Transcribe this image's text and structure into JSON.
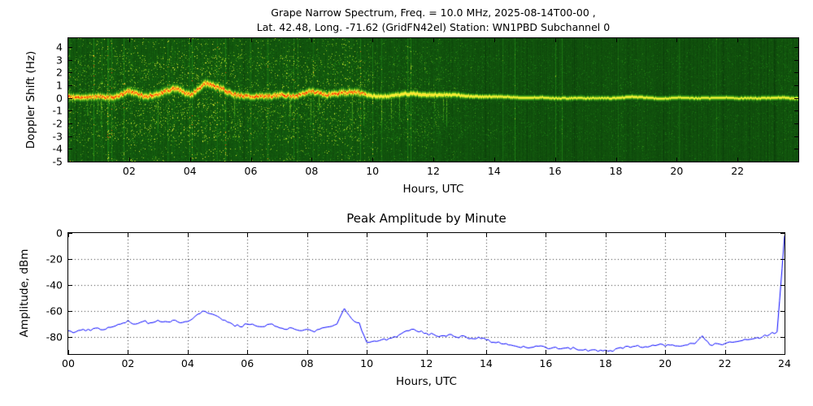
{
  "chart_data": [
    {
      "type": "heatmap",
      "name": "grape-narrow-spectrum",
      "title_line1": "Grape Narrow Spectrum, Freq. = 10.0 MHz, 2025-08-14T00-00 ,",
      "title_line2": "Lat. 42.48, Long. -71.62 (GridFN42el) Station: WN1PBD Subchannel 0",
      "xlabel": "Hours, UTC",
      "ylabel": "Doppler Shift (Hz)",
      "xlim": [
        0,
        24
      ],
      "ylim": [
        -5,
        4.7
      ],
      "xticks": [
        2,
        4,
        6,
        8,
        10,
        12,
        14,
        16,
        18,
        20,
        22
      ],
      "xtick_labels": [
        "02",
        "04",
        "06",
        "08",
        "10",
        "12",
        "14",
        "16",
        "18",
        "20",
        "22"
      ],
      "yticks": [
        4,
        3,
        2,
        1,
        0,
        -1,
        -2,
        -3,
        -4,
        -5
      ],
      "ytick_labels": [
        "4",
        "3",
        "2",
        "1",
        "0",
        "-1",
        "-2",
        "-3",
        "-4",
        "-5"
      ],
      "colormap_stops": [
        "#083208",
        "#1e8214",
        "#96c81e",
        "#ffff3c",
        "#ffa014",
        "#ff1400"
      ],
      "carrier": {
        "hours": [
          0,
          0.5,
          1,
          1.5,
          2,
          2.5,
          3,
          3.5,
          4,
          4.5,
          5,
          5.5,
          6,
          6.5,
          7,
          7.5,
          8,
          8.5,
          9,
          9.5,
          10,
          10.5,
          11,
          11.5,
          12,
          12.5,
          13,
          13.5,
          14,
          14.5,
          15,
          15.5,
          16,
          16.5,
          17,
          17.5,
          18,
          18.5,
          19,
          19.5,
          20,
          20.5,
          21,
          21.5,
          22,
          22.5,
          23,
          23.5,
          24
        ],
        "doppler_hz": [
          0.1,
          0.0,
          0.2,
          0.1,
          0.5,
          0.2,
          0.4,
          0.7,
          0.3,
          1.2,
          0.7,
          0.3,
          0.2,
          0.1,
          0.3,
          0.2,
          0.5,
          0.3,
          0.5,
          0.4,
          0.2,
          0.2,
          0.3,
          0.35,
          0.3,
          0.25,
          0.2,
          0.15,
          0.1,
          0.1,
          0.05,
          0.05,
          0.0,
          0.05,
          0.0,
          0.0,
          0.05,
          0.1,
          0.05,
          0.0,
          0.05,
          0.0,
          0.05,
          0.05,
          0.0,
          0.05,
          0.0,
          0.05,
          0.0
        ],
        "activity": [
          0.85,
          0.8,
          0.85,
          0.9,
          0.95,
          0.9,
          0.9,
          0.95,
          0.9,
          1.0,
          0.95,
          0.85,
          0.8,
          0.85,
          0.85,
          0.8,
          0.85,
          0.85,
          0.9,
          0.85,
          0.6,
          0.55,
          0.6,
          0.65,
          0.6,
          0.5,
          0.45,
          0.4,
          0.35,
          0.3,
          0.3,
          0.28,
          0.25,
          0.25,
          0.25,
          0.22,
          0.3,
          0.35,
          0.3,
          0.25,
          0.25,
          0.22,
          0.25,
          0.25,
          0.22,
          0.25,
          0.28,
          0.3,
          0.3
        ]
      }
    },
    {
      "type": "line",
      "name": "peak-amplitude-by-minute",
      "title": "Peak Amplitude by Minute",
      "xlabel": "Hours, UTC",
      "ylabel": "Amplitude, dBm",
      "xlim": [
        0,
        24
      ],
      "ylim": [
        -93,
        0
      ],
      "xticks": [
        0,
        2,
        4,
        6,
        8,
        10,
        12,
        14,
        16,
        18,
        20,
        22,
        24
      ],
      "xtick_labels": [
        "00",
        "02",
        "04",
        "06",
        "08",
        "10",
        "12",
        "14",
        "16",
        "18",
        "20",
        "22",
        "24"
      ],
      "yticks": [
        0,
        -20,
        -40,
        -60,
        -80
      ],
      "ytick_labels": [
        "0",
        "-20",
        "-40",
        "-60",
        "-80"
      ],
      "line_color": "#0000ff",
      "grid": true,
      "x": [
        0,
        0.25,
        0.5,
        0.75,
        1,
        1.25,
        1.5,
        1.75,
        2,
        2.25,
        2.5,
        2.75,
        3,
        3.25,
        3.5,
        3.75,
        4,
        4.25,
        4.5,
        4.75,
        5,
        5.25,
        5.5,
        5.75,
        6,
        6.25,
        6.5,
        6.75,
        7,
        7.25,
        7.5,
        7.75,
        8,
        8.25,
        8.5,
        8.75,
        9,
        9.25,
        9.5,
        9.75,
        10,
        10.25,
        10.5,
        10.75,
        11,
        11.25,
        11.5,
        11.75,
        12,
        12.25,
        12.5,
        12.75,
        13,
        13.25,
        13.5,
        13.75,
        14,
        14.25,
        14.5,
        14.75,
        15,
        15.25,
        15.5,
        15.75,
        16,
        16.25,
        16.5,
        16.75,
        17,
        17.25,
        17.5,
        17.75,
        18,
        18.25,
        18.5,
        18.75,
        19,
        19.25,
        19.5,
        19.75,
        20,
        20.25,
        20.5,
        20.75,
        21,
        21.25,
        21.5,
        21.75,
        22,
        22.25,
        22.5,
        22.75,
        23,
        23.25,
        23.5,
        23.75,
        24
      ],
      "y": [
        -75,
        -76,
        -74,
        -75,
        -73,
        -74,
        -72,
        -70,
        -67,
        -70,
        -68,
        -69,
        -67,
        -68,
        -67,
        -69,
        -68,
        -64,
        -60,
        -62,
        -64,
        -67,
        -70,
        -72,
        -70,
        -71,
        -72,
        -70,
        -72,
        -74,
        -73,
        -75,
        -74,
        -76,
        -73,
        -72,
        -70,
        -58,
        -66,
        -69,
        -84,
        -83,
        -82,
        -81,
        -80,
        -76,
        -74,
        -76,
        -77,
        -78,
        -79,
        -78,
        -80,
        -79,
        -81,
        -80,
        -82,
        -84,
        -85,
        -86,
        -87,
        -87,
        -88,
        -87,
        -88,
        -88,
        -89,
        -88,
        -89,
        -90,
        -90,
        -91,
        -90,
        -91,
        -88,
        -87,
        -87,
        -88,
        -87,
        -86,
        -87,
        -86,
        -87,
        -86,
        -85,
        -79,
        -86,
        -85,
        -85,
        -84,
        -83,
        -82,
        -81,
        -80,
        -78,
        -76,
        -2
      ]
    }
  ]
}
